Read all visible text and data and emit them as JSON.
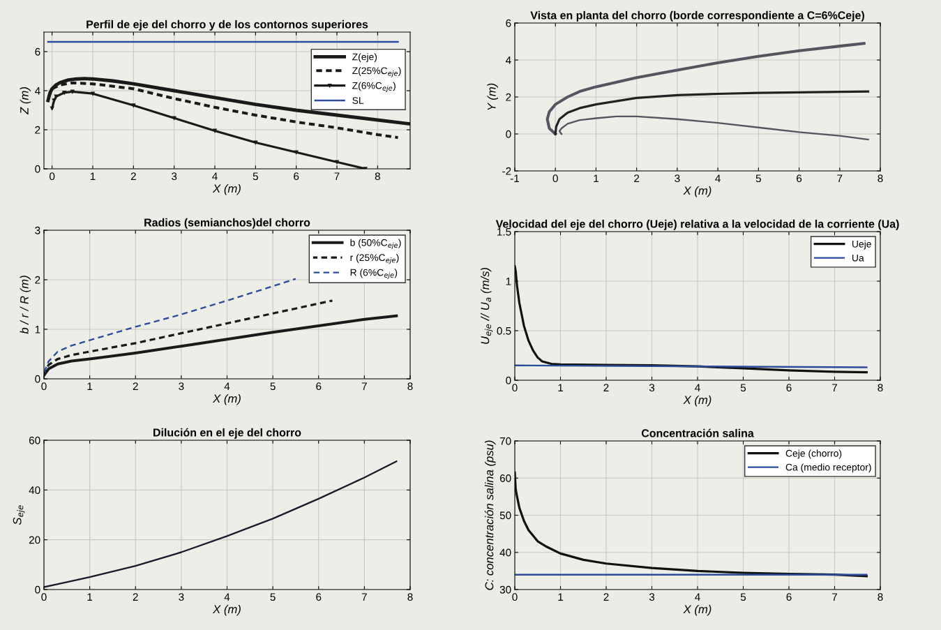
{
  "chart_data": [
    {
      "type": "line",
      "title": "Perfil de eje del chorro y de los contornos superiores",
      "xlabel": "X (m)",
      "ylabel": "Z (m)",
      "xlim": [
        -0.2,
        8.8
      ],
      "ylim": [
        0,
        7
      ],
      "xticks": [
        0,
        1,
        2,
        3,
        4,
        5,
        6,
        7,
        8
      ],
      "yticks": [
        0,
        2,
        4,
        6
      ],
      "grid": true,
      "legend": "top right",
      "series": [
        {
          "name": "Z(eje)",
          "color": "#1a1a1a",
          "line_style": "solid",
          "x": [
            -0.1,
            -0.05,
            0,
            0.1,
            0.2,
            0.4,
            0.6,
            0.8,
            1,
            1.5,
            2,
            3,
            4,
            5,
            6,
            7,
            8,
            8.8
          ],
          "values": [
            3.5,
            3.9,
            4.1,
            4.3,
            4.42,
            4.55,
            4.6,
            4.62,
            4.6,
            4.5,
            4.35,
            4.0,
            3.65,
            3.3,
            3.0,
            2.75,
            2.5,
            2.3
          ]
        },
        {
          "name": "Z(25%C$_{eje}$)",
          "color": "#1a1a1a",
          "line_style": "dashed",
          "x": [
            -0.1,
            0,
            0.2,
            0.5,
            1,
            2,
            3,
            4,
            5,
            6,
            7,
            8,
            8.5
          ],
          "values": [
            3.6,
            4.1,
            4.3,
            4.4,
            4.35,
            4.1,
            3.6,
            3.15,
            2.75,
            2.4,
            2.1,
            1.75,
            1.6
          ]
        },
        {
          "name": "Z(6%C$_{eje}$)",
          "color": "#1a1a1a",
          "line_style": "solid",
          "marker": "triangle",
          "x": [
            0,
            0.05,
            0.1,
            0.3,
            0.5,
            1,
            2,
            3,
            4,
            5,
            6,
            7,
            7.7
          ],
          "values": [
            3.1,
            3.5,
            3.7,
            3.9,
            3.95,
            3.85,
            3.25,
            2.6,
            1.95,
            1.35,
            0.85,
            0.35,
            0.0
          ]
        },
        {
          "name": "SL",
          "color": "#2b4c9b",
          "line_style": "solid",
          "x": [
            -0.1,
            8.5
          ],
          "values": [
            6.5,
            6.5
          ]
        }
      ]
    },
    {
      "type": "line",
      "title": "Vista en planta del chorro (borde correspondiente a C=6%Ceje)",
      "xlabel": "X (m)",
      "ylabel": "Y (m)",
      "xlim": [
        -1,
        8
      ],
      "ylim": [
        -2,
        6
      ],
      "xticks": [
        -1,
        0,
        1,
        2,
        3,
        4,
        5,
        6,
        7,
        8
      ],
      "yticks": [
        -2,
        0,
        2,
        4,
        6
      ],
      "grid": true,
      "series": [
        {
          "color": "#55555f",
          "line_style": "solid",
          "x": [
            0,
            -0.15,
            -0.2,
            -0.15,
            0,
            0.3,
            0.6,
            1,
            2,
            3,
            4,
            5,
            6,
            7,
            7.6
          ],
          "values": [
            0,
            0.3,
            0.8,
            1.2,
            1.6,
            2.0,
            2.3,
            2.55,
            3.05,
            3.45,
            3.85,
            4.2,
            4.5,
            4.75,
            4.9
          ]
        },
        {
          "color": "#222222",
          "line_style": "solid",
          "x": [
            0,
            0.02,
            0.1,
            0.3,
            0.6,
            1,
            2,
            3,
            4,
            5,
            6,
            7,
            7.7
          ],
          "values": [
            0,
            0.4,
            0.8,
            1.15,
            1.4,
            1.6,
            1.95,
            2.1,
            2.17,
            2.22,
            2.25,
            2.28,
            2.3
          ]
        },
        {
          "color": "#55555f",
          "line_style": "solid",
          "x": [
            0.15,
            0.1,
            0.15,
            0.3,
            0.6,
            1,
            1.5,
            2,
            3,
            4,
            5,
            6,
            7,
            7.7
          ],
          "values": [
            0,
            0.15,
            0.3,
            0.55,
            0.75,
            0.85,
            0.95,
            0.95,
            0.8,
            0.6,
            0.35,
            0.1,
            -0.1,
            -0.3
          ]
        }
      ]
    },
    {
      "type": "line",
      "title": "Radios (semianchos)del chorro",
      "xlabel": "X (m)",
      "ylabel": "b / r / R (m)",
      "xlim": [
        0,
        8
      ],
      "ylim": [
        0,
        3
      ],
      "xticks": [
        0,
        1,
        2,
        3,
        4,
        5,
        6,
        7,
        8
      ],
      "yticks": [
        0,
        1,
        2,
        3
      ],
      "grid": true,
      "legend": "top right",
      "series": [
        {
          "name": "b (50%C$_{eje}$)",
          "color": "#1a1a1a",
          "line_style": "solid",
          "x": [
            0,
            0.1,
            0.3,
            0.6,
            1,
            2,
            3,
            4,
            5,
            6,
            7,
            7.7
          ],
          "values": [
            0.07,
            0.2,
            0.3,
            0.36,
            0.4,
            0.52,
            0.66,
            0.8,
            0.94,
            1.07,
            1.2,
            1.27
          ]
        },
        {
          "name": "r (25%C$_{eje}$)",
          "color": "#1a1a1a",
          "line_style": "dashed",
          "x": [
            0,
            0.1,
            0.3,
            0.6,
            1,
            2,
            3,
            4,
            5,
            6,
            6.3
          ],
          "values": [
            0.1,
            0.28,
            0.4,
            0.48,
            0.55,
            0.72,
            0.92,
            1.12,
            1.32,
            1.52,
            1.58
          ]
        },
        {
          "name": "R (6%C$_{eje}$)",
          "color": "#2b4c9b",
          "line_style": "dashed",
          "x": [
            0,
            0.1,
            0.3,
            0.6,
            1,
            2,
            3,
            4,
            5,
            5.5
          ],
          "values": [
            0.12,
            0.35,
            0.55,
            0.67,
            0.78,
            1.05,
            1.3,
            1.58,
            1.87,
            2.02
          ]
        }
      ]
    },
    {
      "type": "line",
      "title": "Velocidad del eje del chorro (Ueje) relativa a la velocidad de la corriente (Ua)",
      "xlabel": "X (m)",
      "ylabel": "U$_{eje}$ // U$_{a}$ (m/s)",
      "xlim": [
        0,
        8
      ],
      "ylim": [
        0,
        1.5
      ],
      "xticks": [
        0,
        1,
        2,
        3,
        4,
        5,
        6,
        7,
        8
      ],
      "yticks": [
        0,
        0.5,
        1,
        1.5
      ],
      "grid": true,
      "legend": "top right",
      "series": [
        {
          "name": "Ueje",
          "color": "#111111",
          "line_style": "solid",
          "x": [
            0,
            0.02,
            0.05,
            0.1,
            0.2,
            0.3,
            0.4,
            0.5,
            0.6,
            0.8,
            1,
            2,
            3,
            4,
            5,
            6,
            7,
            7.7
          ],
          "values": [
            1.15,
            1.1,
            0.95,
            0.78,
            0.55,
            0.4,
            0.3,
            0.23,
            0.19,
            0.165,
            0.16,
            0.155,
            0.15,
            0.14,
            0.12,
            0.1,
            0.085,
            0.08
          ]
        },
        {
          "name": "Ua",
          "color": "#2b4c9b",
          "line_style": "solid",
          "x": [
            0,
            7.7
          ],
          "values": [
            0.15,
            0.13
          ]
        }
      ]
    },
    {
      "type": "line",
      "title": "Dilución en el eje del chorro",
      "xlabel": "X (m)",
      "ylabel": "S$_{eje}$",
      "xlim": [
        0,
        8
      ],
      "ylim": [
        0,
        60
      ],
      "xticks": [
        0,
        1,
        2,
        3,
        4,
        5,
        6,
        7,
        8
      ],
      "yticks": [
        0,
        20,
        40,
        60
      ],
      "grid": true,
      "series": [
        {
          "color": "#1a1a2a",
          "line_style": "solid",
          "x": [
            0,
            0.5,
            1,
            2,
            3,
            4,
            5,
            6,
            7,
            7.7
          ],
          "values": [
            1,
            3,
            5,
            9.5,
            15,
            21.5,
            28.5,
            36.5,
            45,
            51.5
          ]
        }
      ]
    },
    {
      "type": "line",
      "title": "Concentración salina",
      "xlabel": "X (m)",
      "ylabel": "C: concentración salina (psu)",
      "xlim": [
        0,
        8
      ],
      "ylim": [
        30,
        70
      ],
      "xticks": [
        0,
        1,
        2,
        3,
        4,
        5,
        6,
        7,
        8
      ],
      "yticks": [
        30,
        40,
        50,
        60,
        70
      ],
      "grid": true,
      "legend": "top right",
      "series": [
        {
          "name": "Ceje (chorro)",
          "color": "#111111",
          "line_style": "solid",
          "x": [
            0,
            0.02,
            0.05,
            0.1,
            0.2,
            0.3,
            0.5,
            0.7,
            1,
            1.5,
            2,
            3,
            4,
            5,
            6,
            7,
            7.7
          ],
          "values": [
            61.5,
            57,
            55,
            52,
            48.5,
            46,
            43,
            41.5,
            39.7,
            38,
            37,
            35.8,
            35,
            34.5,
            34.2,
            34,
            33.6
          ]
        },
        {
          "name": "Ca (medio receptor)",
          "color": "#2b4c9b",
          "line_style": "solid",
          "x": [
            0,
            7.7
          ],
          "values": [
            34,
            34
          ]
        }
      ]
    }
  ]
}
